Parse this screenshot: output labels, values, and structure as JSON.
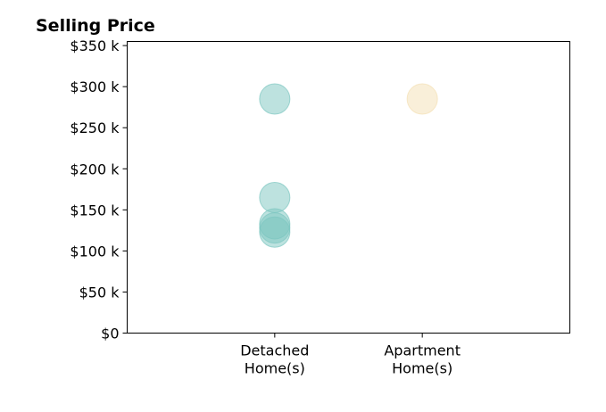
{
  "chart_data": {
    "type": "scatter",
    "title": "Selling Price",
    "xlabel": "",
    "ylabel": "",
    "categories": [
      [
        "Detached",
        "Home(s)"
      ],
      [
        "Apartment",
        "Home(s)"
      ]
    ],
    "xlim": [
      -1,
      2
    ],
    "ylim": [
      0,
      355000
    ],
    "yticks": [
      0,
      50000,
      100000,
      150000,
      200000,
      250000,
      300000,
      350000
    ],
    "ytick_labels": [
      "$0",
      "$50 k",
      "$100 k",
      "$150 k",
      "$200 k",
      "$250 k",
      "$300 k",
      "$350 k"
    ],
    "grid": false,
    "series": [
      {
        "category_index": 0,
        "color": "#7cc6c0",
        "values": [
          285000,
          165000,
          133000,
          128000,
          123000
        ]
      },
      {
        "category_index": 1,
        "color": "#f3dfb3",
        "values": [
          285000
        ]
      }
    ]
  }
}
